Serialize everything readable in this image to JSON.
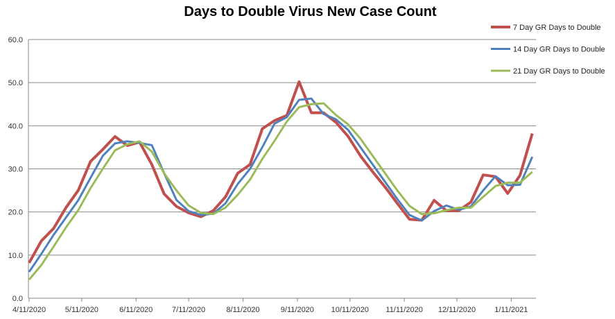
{
  "chart_data": {
    "type": "line",
    "title": "Days to Double Virus New Case Count",
    "xlabel": "",
    "ylabel": "",
    "ylim": [
      0,
      60
    ],
    "yticks": [
      "0.0",
      "10.0",
      "20.0",
      "30.0",
      "40.0",
      "50.0",
      "60.0"
    ],
    "xticks": [
      "4/11/2020",
      "5/11/2020",
      "6/11/2020",
      "7/11/2020",
      "8/11/2020",
      "9/11/2020",
      "10/11/2020",
      "11/11/2020",
      "12/11/2020",
      "1/11/2021"
    ],
    "grid": true,
    "legend": "right",
    "x_start": "4/11/2020",
    "x_interval_days": 7,
    "series": [
      {
        "name": "7 Day GR Days to Double",
        "color": "#C0504D",
        "values": [
          8.2,
          13.3,
          16.2,
          21,
          25,
          31.7,
          34.5,
          37.5,
          35.4,
          36.2,
          31,
          24.2,
          21.3,
          19.8,
          18.9,
          20.3,
          23.5,
          29,
          31,
          39.3,
          41.2,
          42.4,
          50.2,
          43,
          43,
          40.8,
          37.5,
          33,
          29.3,
          25.8,
          22,
          18.3,
          18.1,
          22.7,
          20.3,
          20.3,
          22.3,
          28.6,
          28.2,
          24.3,
          28.5,
          38.2
        ]
      },
      {
        "name": "14 Day GR Days to Double",
        "color": "#4F81BD",
        "values": [
          6.1,
          10.3,
          14.7,
          18.7,
          22.7,
          27.9,
          33,
          35.9,
          36.4,
          36,
          35.5,
          29,
          22.8,
          20.2,
          19.3,
          19.6,
          22,
          26.5,
          30,
          35,
          40.5,
          42,
          46,
          46.3,
          42.7,
          41.5,
          39,
          35,
          31,
          27,
          23,
          19.3,
          18,
          20.2,
          21.5,
          20.5,
          21.3,
          25,
          28.3,
          26.2,
          26.3,
          32.8
        ]
      },
      {
        "name": "21 Day GR Days to Double",
        "color": "#9BBB59",
        "values": [
          4.3,
          7.7,
          12,
          16.4,
          20.4,
          25.5,
          30,
          34.3,
          35.7,
          36.4,
          34,
          29,
          25,
          21.5,
          19.8,
          19.5,
          21,
          24,
          27.5,
          32.3,
          36.5,
          41,
          44.3,
          45,
          45.2,
          42.5,
          40.3,
          37,
          33,
          29,
          25,
          21.4,
          19.5,
          19.7,
          20.4,
          21,
          21,
          23.5,
          26,
          26.8,
          26.8,
          29.3
        ]
      }
    ]
  }
}
